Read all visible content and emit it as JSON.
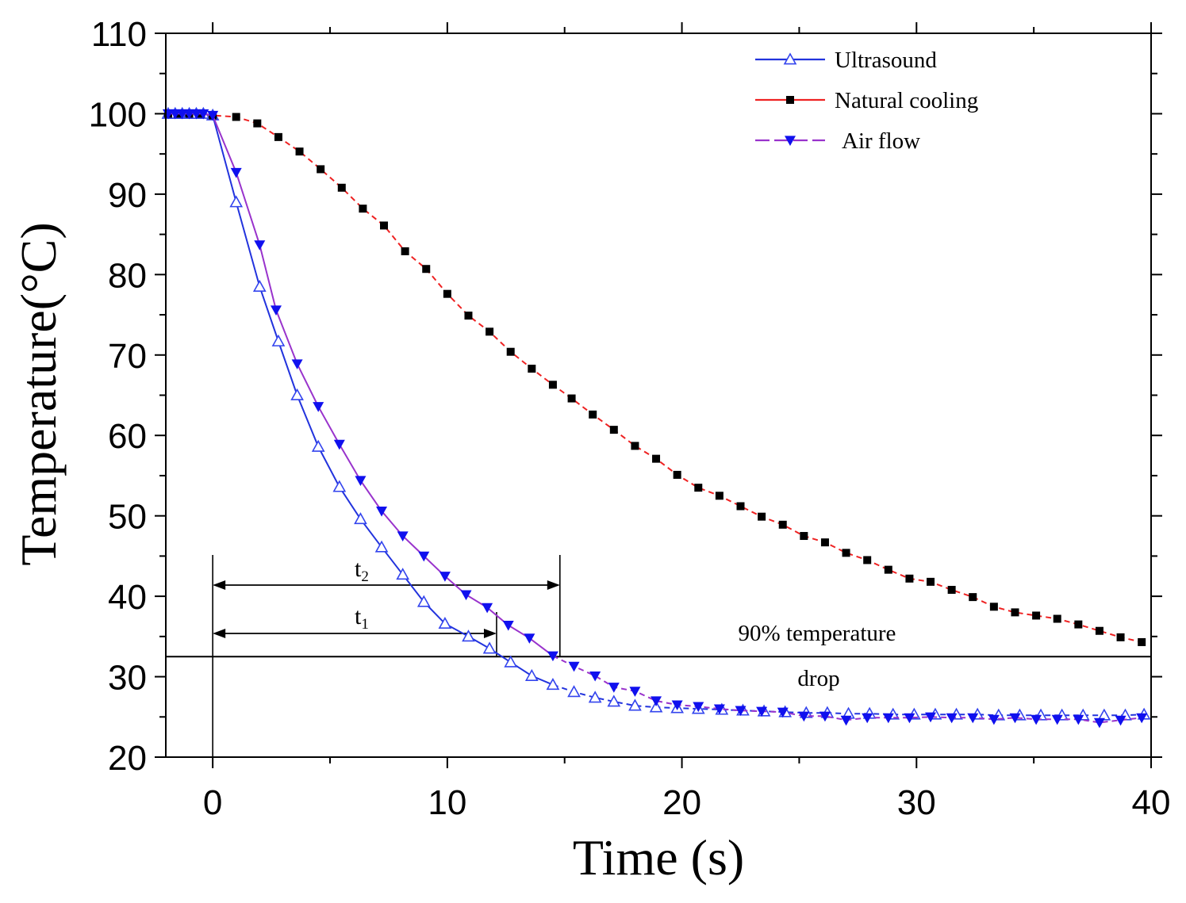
{
  "chart_data": {
    "type": "line",
    "title": "",
    "xlabel": "Time (s)",
    "ylabel": "Temperature(°C)",
    "xlim": [
      -2,
      40
    ],
    "ylim": [
      20,
      110
    ],
    "xticks": [
      0,
      10,
      20,
      30,
      40
    ],
    "yticks": [
      20,
      30,
      40,
      50,
      60,
      70,
      80,
      90,
      100,
      110
    ],
    "legend_position": "top-right",
    "series": [
      {
        "name": "Ultrasound",
        "line_color": "#2233dd",
        "marker": "open-triangle-up",
        "marker_color": "#3344ee",
        "dash": "solid-then-dashed",
        "x": [
          -1.9,
          -1.6,
          -1.3,
          -1,
          -0.7,
          -0.4,
          0,
          1,
          2,
          2.8,
          3.6,
          4.5,
          5.4,
          6.3,
          7.2,
          8.1,
          9,
          9.9,
          10.9,
          11.8,
          12.7,
          13.6,
          14.5,
          15.4,
          16.3,
          17.1,
          18,
          18.9,
          19.8,
          20.7,
          21.7,
          22.6,
          23.5,
          24.4,
          25.3,
          26.2,
          27.1,
          28,
          29,
          29.9,
          30.8,
          31.7,
          32.6,
          33.5,
          34.4,
          35.3,
          36.2,
          37.1,
          38,
          38.9,
          39.7
        ],
        "y": [
          100,
          100,
          100,
          100,
          100,
          100,
          99.8,
          89,
          78.5,
          71.7,
          65,
          58.6,
          53.6,
          49.6,
          46.1,
          42.7,
          39.3,
          36.6,
          35,
          33.5,
          31.8,
          30.1,
          29,
          28.1,
          27.4,
          26.9,
          26.4,
          26.2,
          26.1,
          26,
          25.9,
          25.8,
          25.7,
          25.6,
          25.5,
          25.5,
          25.4,
          25.4,
          25.3,
          25.3,
          25.3,
          25.3,
          25.3,
          25.2,
          25.2,
          25.2,
          25.2,
          25.2,
          25.2,
          25.2,
          25.3
        ]
      },
      {
        "name": "Natural cooling",
        "line_color": "#ee2222",
        "marker": "filled-square",
        "marker_color": "#000000",
        "dash": "dashed",
        "x": [
          -1.9,
          -1.5,
          -1,
          -0.5,
          0,
          1,
          1.9,
          2.8,
          3.7,
          4.6,
          5.5,
          6.4,
          7.3,
          8.2,
          9.1,
          10,
          10.9,
          11.8,
          12.7,
          13.6,
          14.5,
          15.3,
          16.2,
          17.1,
          18,
          18.9,
          19.8,
          20.7,
          21.6,
          22.5,
          23.4,
          24.3,
          25.2,
          26.1,
          27,
          27.9,
          28.8,
          29.7,
          30.6,
          31.5,
          32.4,
          33.3,
          34.2,
          35.1,
          36,
          36.9,
          37.8,
          38.7,
          39.6
        ],
        "y": [
          100,
          100,
          100,
          100,
          99.8,
          99.6,
          98.8,
          97.1,
          95.3,
          93.1,
          90.8,
          88.2,
          86.1,
          82.9,
          80.7,
          77.6,
          74.9,
          72.9,
          70.4,
          68.3,
          66.3,
          64.6,
          62.6,
          60.7,
          58.7,
          57.1,
          55.1,
          53.5,
          52.5,
          51.2,
          49.9,
          48.9,
          47.5,
          46.7,
          45.4,
          44.5,
          43.3,
          42.2,
          41.8,
          40.8,
          39.9,
          38.7,
          38,
          37.6,
          37.2,
          36.5,
          35.7,
          34.9,
          34.3
        ]
      },
      {
        "name": "Air flow",
        "line_color": "#9933cc",
        "marker": "filled-triangle-down",
        "marker_color": "#1010ee",
        "dash": "solid-then-dashed",
        "x": [
          -1.9,
          -1.6,
          -1.3,
          -1,
          -0.7,
          -0.4,
          0,
          1,
          2,
          2.7,
          3.6,
          4.5,
          5.4,
          6.3,
          7.2,
          8.1,
          9,
          9.9,
          10.8,
          11.7,
          12.6,
          13.5,
          14.5,
          15.4,
          16.3,
          17.1,
          18,
          18.9,
          19.8,
          20.7,
          21.6,
          22.5,
          23.4,
          24.3,
          25.2,
          26.1,
          27,
          27.9,
          28.8,
          29.7,
          30.6,
          31.5,
          32.4,
          33.3,
          34.2,
          35.1,
          36,
          36.9,
          37.8,
          38.7,
          39.6
        ],
        "y": [
          100,
          100,
          100,
          100,
          100,
          100,
          99.8,
          92.7,
          83.7,
          75.6,
          68.9,
          63.6,
          58.9,
          54.4,
          50.6,
          47.5,
          45,
          42.5,
          40.2,
          38.6,
          36.4,
          34.8,
          32.6,
          31.3,
          30.1,
          28.7,
          28.2,
          27,
          26.5,
          26.3,
          26,
          25.8,
          25.7,
          25.6,
          25.1,
          25.1,
          24.6,
          24.9,
          24.9,
          24.9,
          25,
          24.9,
          24.9,
          24.7,
          24.9,
          24.7,
          24.7,
          24.7,
          24.3,
          24.6,
          24.9
        ]
      }
    ],
    "annotations": {
      "threshold_y": 32.5,
      "threshold_label_top": "90% temperature",
      "threshold_label_bottom": "drop",
      "start_x": 0,
      "t1_end_x": 12.1,
      "t2_end_x": 14.8,
      "t1_label": "t",
      "t1_sub": "1",
      "t2_label": "t",
      "t2_sub": "2"
    }
  }
}
